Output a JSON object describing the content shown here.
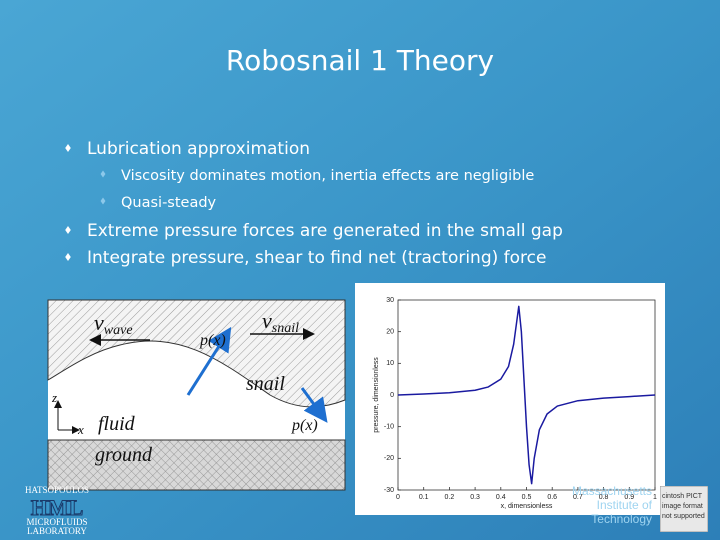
{
  "slide": {
    "title": "Robosnail 1 Theory",
    "bullets": [
      {
        "text": "Lubrication approximation",
        "sub": [
          "Viscosity dominates motion, inertia effects are negligible",
          "Quasi-steady"
        ]
      },
      {
        "text": "Extreme pressure forces are generated in the small gap"
      },
      {
        "text": "Integrate pressure, shear to find net (tractoring) force"
      }
    ]
  },
  "diagram": {
    "v_wave": {
      "main": "v",
      "sub": "wave"
    },
    "v_snail": {
      "main": "v",
      "sub": "snail"
    },
    "p_top": "p(x)",
    "snail": "snail",
    "fluid": "fluid",
    "p_right": "p(x)",
    "ground": "ground",
    "z": "z",
    "x": "x"
  },
  "chart_data": {
    "type": "line",
    "xlabel": "x, dimensionless",
    "ylabel": "pressure, dimensionless",
    "x": [
      0,
      0.1,
      0.2,
      0.3,
      0.35,
      0.4,
      0.43,
      0.45,
      0.46,
      0.47,
      0.48,
      0.49,
      0.5,
      0.51,
      0.52,
      0.53,
      0.55,
      0.58,
      0.62,
      0.7,
      0.8,
      0.9,
      1.0
    ],
    "series": [
      {
        "name": "pressure",
        "color": "#1a1aa0",
        "values": [
          0,
          0.3,
          0.7,
          1.5,
          2.5,
          5,
          9,
          16,
          22,
          28,
          20,
          5,
          -10,
          -22,
          -28,
          -20,
          -11,
          -6,
          -3.5,
          -1.8,
          -1,
          -0.5,
          0
        ]
      }
    ],
    "xlim": [
      0,
      1
    ],
    "ylim": [
      -30,
      30
    ],
    "xticks": [
      0,
      0.1,
      0.2,
      0.3,
      0.4,
      0.5,
      0.6,
      0.7,
      0.8,
      0.9,
      1
    ],
    "yticks": [
      -30,
      -20,
      -10,
      0,
      10,
      20,
      30
    ]
  },
  "logos": {
    "hml": [
      "HATSOPOULOS",
      "HML",
      "MICROFLUIDS",
      "LABORATORY"
    ],
    "mit": [
      "Massachusetts",
      "Institute of",
      "Technology"
    ],
    "notice": [
      "cintosh PICT",
      "image format",
      "not supported"
    ]
  }
}
